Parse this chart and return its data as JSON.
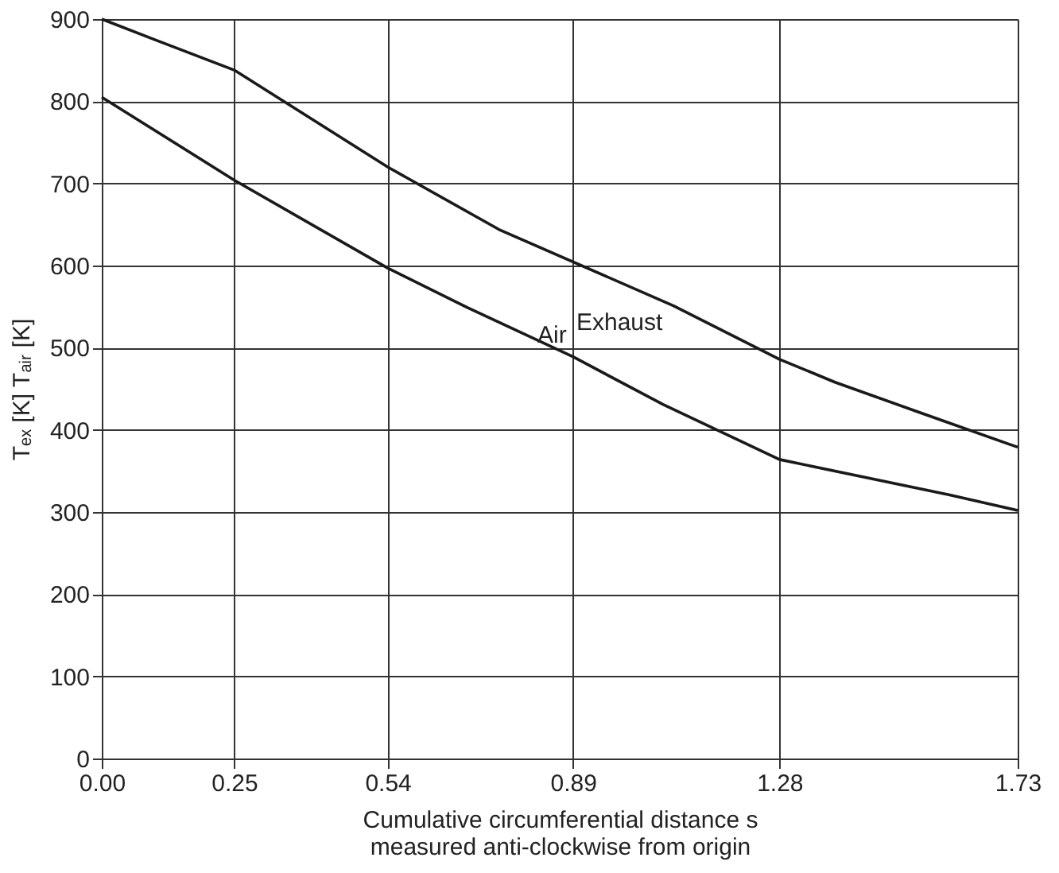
{
  "chart_data": {
    "type": "line",
    "xlabel": "Cumulative circumferential distance s\nmeasured anti-clockwise from origin",
    "ylabel": "Tₑₓ [K]        Tₐᵢᵣ [K]",
    "xlim": [
      0,
      1.73
    ],
    "xticks": [
      {
        "value": 0,
        "label": "0.00"
      },
      0.25,
      0.54,
      0.89,
      1.28,
      1.73
    ],
    "ylim": [
      0,
      900
    ],
    "yticks": [
      0,
      100,
      200,
      300,
      400,
      500,
      600,
      700,
      800,
      900
    ],
    "grid": true,
    "marker": "none",
    "line_style": "solid",
    "series": [
      {
        "name": "Exhaust",
        "color": "#1a1a1a",
        "x": [
          0,
          0.1,
          0.25,
          0.54,
          0.75,
          1.08,
          1.28,
          1.385,
          1.55,
          1.73
        ],
        "values": [
          900,
          875,
          838,
          720,
          644,
          551,
          486,
          458,
          420,
          379
        ]
      },
      {
        "name": "Air",
        "color": "#1a1a1a",
        "x": [
          0,
          0.25,
          0.54,
          0.69,
          0.89,
          1.06,
          1.28,
          1.6,
          1.73
        ],
        "values": [
          805,
          704,
          597,
          549,
          489,
          431,
          364,
          321,
          302
        ]
      }
    ]
  }
}
